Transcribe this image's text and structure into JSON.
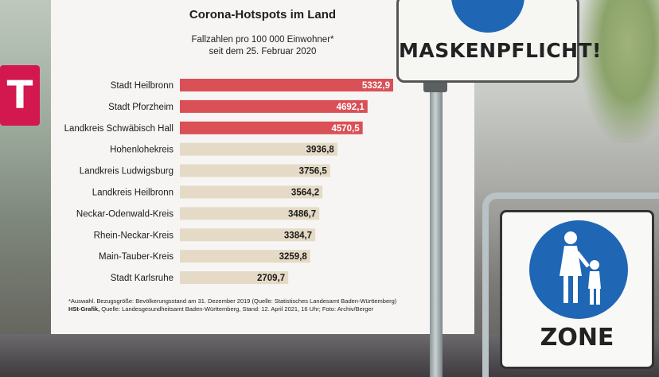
{
  "chart_data": {
    "type": "bar",
    "orientation": "horizontal",
    "title": "Corona-Hotspots im Land",
    "subtitle_lines": [
      "Fallzahlen pro 100 000 Einwohner*",
      "seit dem 25. Februar 2020"
    ],
    "categories": [
      "Stadt Heilbronn",
      "Stadt Pforzheim",
      "Landkreis Schwäbisch Hall",
      "Hohenlohekreis",
      "Landkreis Ludwigsburg",
      "Landkreis Heilbronn",
      "Neckar-Odenwald-Kreis",
      "Rhein-Neckar-Kreis",
      "Main-Tauber-Kreis",
      "Stadt Karlsruhe"
    ],
    "values": [
      5332.9,
      4692.1,
      4570.5,
      3936.8,
      3756.5,
      3564.2,
      3486.7,
      3384.7,
      3259.8,
      2709.7
    ],
    "value_labels": [
      "5332,9",
      "4692,1",
      "4570,5",
      "3936,8",
      "3756,5",
      "3564,2",
      "3486,7",
      "3384,7",
      "3259,8",
      "2709,7"
    ],
    "highlighted_count": 3,
    "xlim": [
      0,
      5332.9
    ],
    "grid": false,
    "legend": "none",
    "colors": {
      "highlight": "#d95056",
      "normal": "#e5dac5",
      "highlight_label": "#ffffff",
      "normal_label": "#1a1a1a"
    }
  },
  "footnote": {
    "line1": "*Auswahl. Bezugsgröße: Bevölkerungsstand am 31. Dezember 2019 (Quelle: Statistisches Landesamt Baden-Württemberg)",
    "line2_bold": "HSt-Grafik,",
    "line2_rest": " Quelle: Landesgesundheitsamt Baden-Württemberg, Stand: 12. April 2021, 16 Uhr; Foto: Archiv/Berger"
  },
  "photo": {
    "mask_sign_text": "MASKENPFLICHT!",
    "zone_sign_text": "ZONE",
    "telekom_letter": "T"
  }
}
